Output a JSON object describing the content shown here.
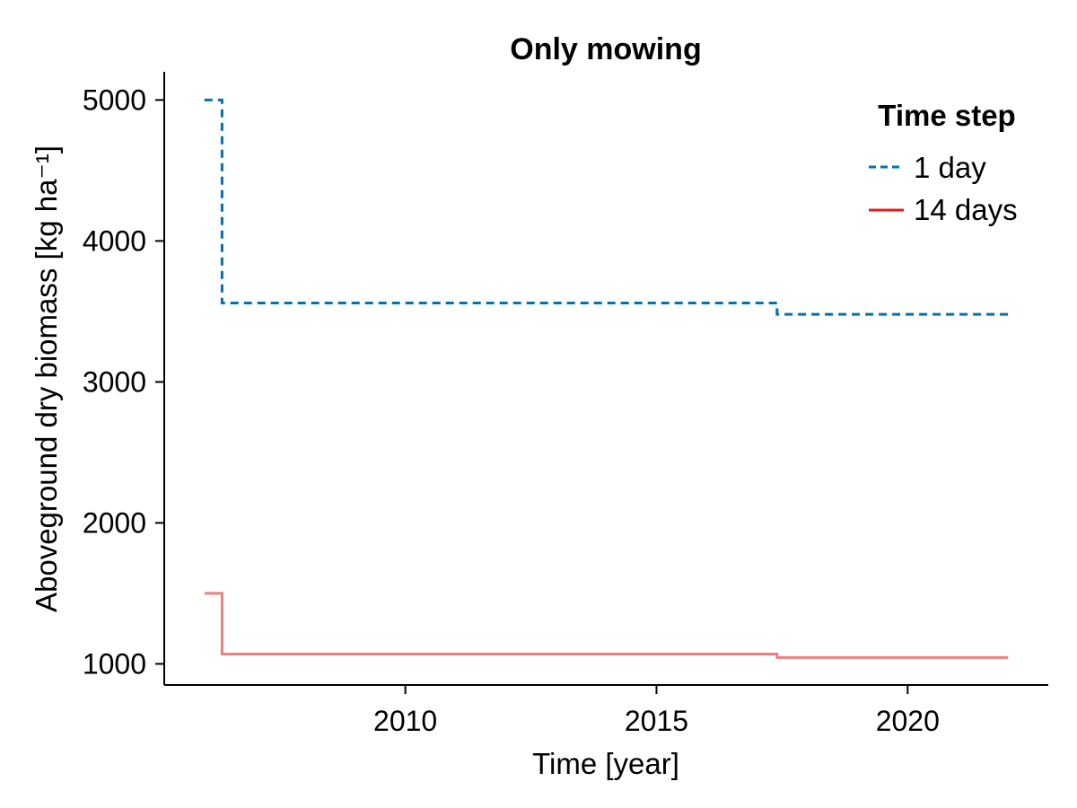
{
  "chart_data": {
    "type": "line",
    "title": "Only mowing",
    "xlabel": "Time [year]",
    "ylabel": "Aboveground dry biomass [kg ha⁻¹]",
    "xlim": [
      2005.2,
      2022.8
    ],
    "ylim": [
      850,
      5200
    ],
    "xticks": [
      2010,
      2015,
      2020
    ],
    "yticks": [
      1000,
      2000,
      3000,
      4000,
      5000
    ],
    "grid": false,
    "legend": {
      "title": "Time step",
      "position": "top-right"
    },
    "series": [
      {
        "name": "1 day",
        "color": "#0072B2",
        "dash": "dashed",
        "x": [
          2006.0,
          2006.35,
          2006.35,
          2017.4,
          2017.4,
          2022.0
        ],
        "values": [
          5000,
          5000,
          3560,
          3560,
          3480,
          3480
        ]
      },
      {
        "name": "14 days",
        "color": "#F08080",
        "legend_color": "#E41A1C",
        "dash": "solid",
        "x": [
          2006.0,
          2006.35,
          2006.35,
          2017.4,
          2017.4,
          2022.0
        ],
        "values": [
          1500,
          1500,
          1070,
          1070,
          1045,
          1045
        ]
      }
    ]
  }
}
